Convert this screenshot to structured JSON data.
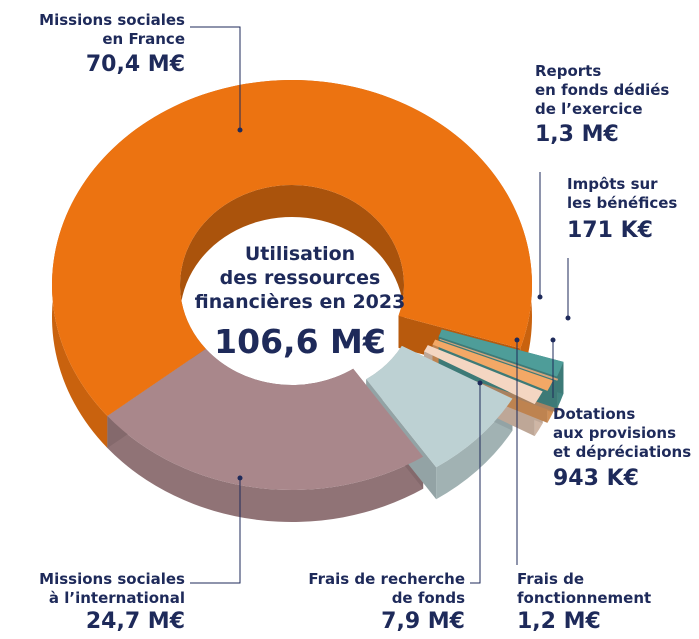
{
  "chart_data": {
    "type": "donut",
    "title": "Utilisation\ndes ressources\nfinancières en 2023",
    "center_label": "106,6 M€",
    "categories": [
      "Missions sociales\nen France",
      "Missions sociales\nà l’international",
      "Frais de recherche\nde fonds",
      "Frais de\nfonctionnement",
      "Dotations\naux provisions\net dépréciations",
      "Impôts sur\nles bénéfices",
      "Reports\nen fonds dédiés\nde l’exercice"
    ],
    "values": [
      70.4,
      24.7,
      7.9,
      1.2,
      0.943,
      0.171,
      1.3
    ],
    "value_labels": [
      "70,4 M€",
      "24,7 M€",
      "7,9 M€",
      "1,2 M€",
      "943 K€",
      "171 K€",
      "1,3 M€"
    ],
    "colors": [
      "#ec7311",
      "#a9878b",
      "#bdd1d3",
      "#f4d6c2",
      "#f3a866",
      "#d7a57b",
      "#4e9d99"
    ]
  }
}
